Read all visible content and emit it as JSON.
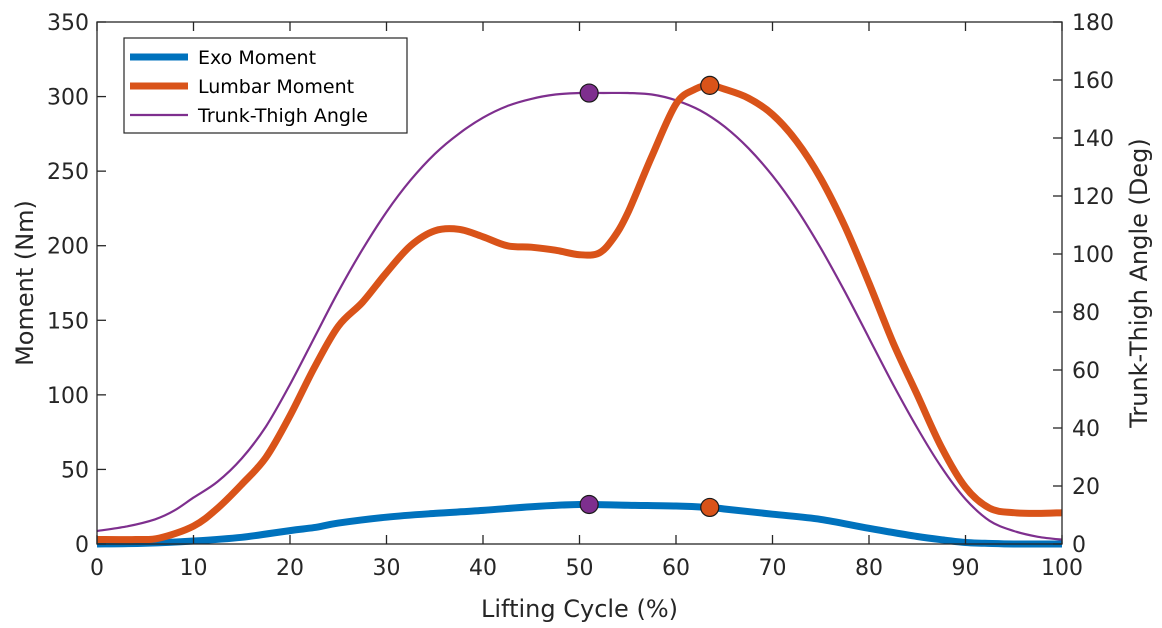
{
  "chart_data": {
    "type": "line",
    "xlabel": "Lifting Cycle (%)",
    "ylabel_left": "Moment (Nm)",
    "ylabel_right": "Trunk-Thigh Angle (Deg)",
    "xlim": [
      0,
      100
    ],
    "ylim_left": [
      0,
      350
    ],
    "ylim_right": [
      0,
      180
    ],
    "x_ticks": [
      0,
      10,
      20,
      30,
      40,
      50,
      60,
      70,
      80,
      90,
      100
    ],
    "y_left_ticks": [
      0,
      50,
      100,
      150,
      200,
      250,
      300,
      350
    ],
    "y_right_ticks": [
      0,
      20,
      40,
      60,
      80,
      100,
      120,
      140,
      160,
      180
    ],
    "grid": false,
    "legend_position": "top-left",
    "series": [
      {
        "name": "Exo Moment",
        "axis": "left",
        "color": "#0072BD",
        "line_width": 7,
        "x": [
          0,
          5,
          10,
          15,
          20,
          22.5,
          25,
          30,
          35,
          40,
          45,
          50,
          55,
          60,
          63.5,
          65,
          70,
          75,
          80,
          85,
          88,
          90,
          92,
          95,
          100
        ],
        "y": [
          0,
          0.5,
          2,
          4.5,
          9,
          11,
          14,
          18,
          20.5,
          22.5,
          25,
          26.5,
          26,
          25.5,
          24.5,
          23.5,
          20,
          16.5,
          10.5,
          5,
          2.5,
          1,
          0.5,
          0,
          0
        ]
      },
      {
        "name": "Lumbar Moment",
        "axis": "left",
        "color": "#D95319",
        "line_width": 7,
        "x": [
          0,
          4,
          6.5,
          10,
          12.5,
          15,
          17.5,
          20,
          22.5,
          25,
          27.5,
          30,
          32.5,
          35,
          37.5,
          40,
          42.5,
          45,
          47.5,
          50,
          52,
          53.5,
          55,
          57.5,
          60,
          62,
          63.5,
          65,
          67.5,
          70,
          72.5,
          75,
          77.5,
          80,
          82.5,
          85,
          87.5,
          90,
          92.5,
          95,
          97.5,
          100
        ],
        "y": [
          3,
          3,
          4,
          12,
          24,
          40,
          58,
          86,
          118,
          146,
          162,
          182,
          200,
          210,
          211,
          206,
          200,
          199,
          197,
          194,
          195,
          205,
          222,
          260,
          295,
          305,
          307.5,
          305,
          299,
          288,
          270,
          245,
          213,
          175,
          135,
          100,
          65,
          38,
          24,
          21,
          20.5,
          21
        ]
      },
      {
        "name": "Trunk-Thigh Angle",
        "axis": "right",
        "color": "#7E2F8E",
        "line_width": 2.2,
        "x": [
          0,
          3,
          6,
          8,
          10,
          12.5,
          15,
          17.5,
          20,
          22.5,
          25,
          27.5,
          30,
          32.5,
          35,
          37.5,
          40,
          42.5,
          45,
          47.5,
          50,
          52.5,
          55,
          57.5,
          60,
          62.5,
          65,
          67.5,
          70,
          72.5,
          75,
          77.5,
          80,
          82.5,
          85,
          87.5,
          90,
          92.5,
          95,
          97.5,
          100
        ],
        "y": [
          4.5,
          6,
          8.5,
          11.5,
          16,
          21.5,
          29.5,
          40.5,
          55,
          71,
          87,
          101.5,
          114.5,
          125.5,
          134.5,
          141.5,
          147,
          151,
          153.5,
          155,
          155.5,
          155.5,
          155.5,
          155,
          153,
          149.5,
          144,
          136.5,
          127,
          115.5,
          102,
          87,
          71,
          55,
          40,
          26.5,
          15.5,
          8,
          4.5,
          2.5,
          1.5
        ]
      }
    ],
    "markers": [
      {
        "series": "Trunk-Thigh Angle",
        "axis": "right",
        "x": 51,
        "y": 155.5,
        "color": "#7E2F8E"
      },
      {
        "series": "Lumbar Moment",
        "axis": "left",
        "x": 63.5,
        "y": 307.5,
        "color": "#D95319"
      },
      {
        "series": "Exo Moment",
        "axis": "left",
        "x": 51,
        "y": 26.5,
        "color": "#7E2F8E"
      },
      {
        "series": "Exo Moment",
        "axis": "left",
        "x": 63.5,
        "y": 24.5,
        "color": "#D95319"
      }
    ]
  }
}
